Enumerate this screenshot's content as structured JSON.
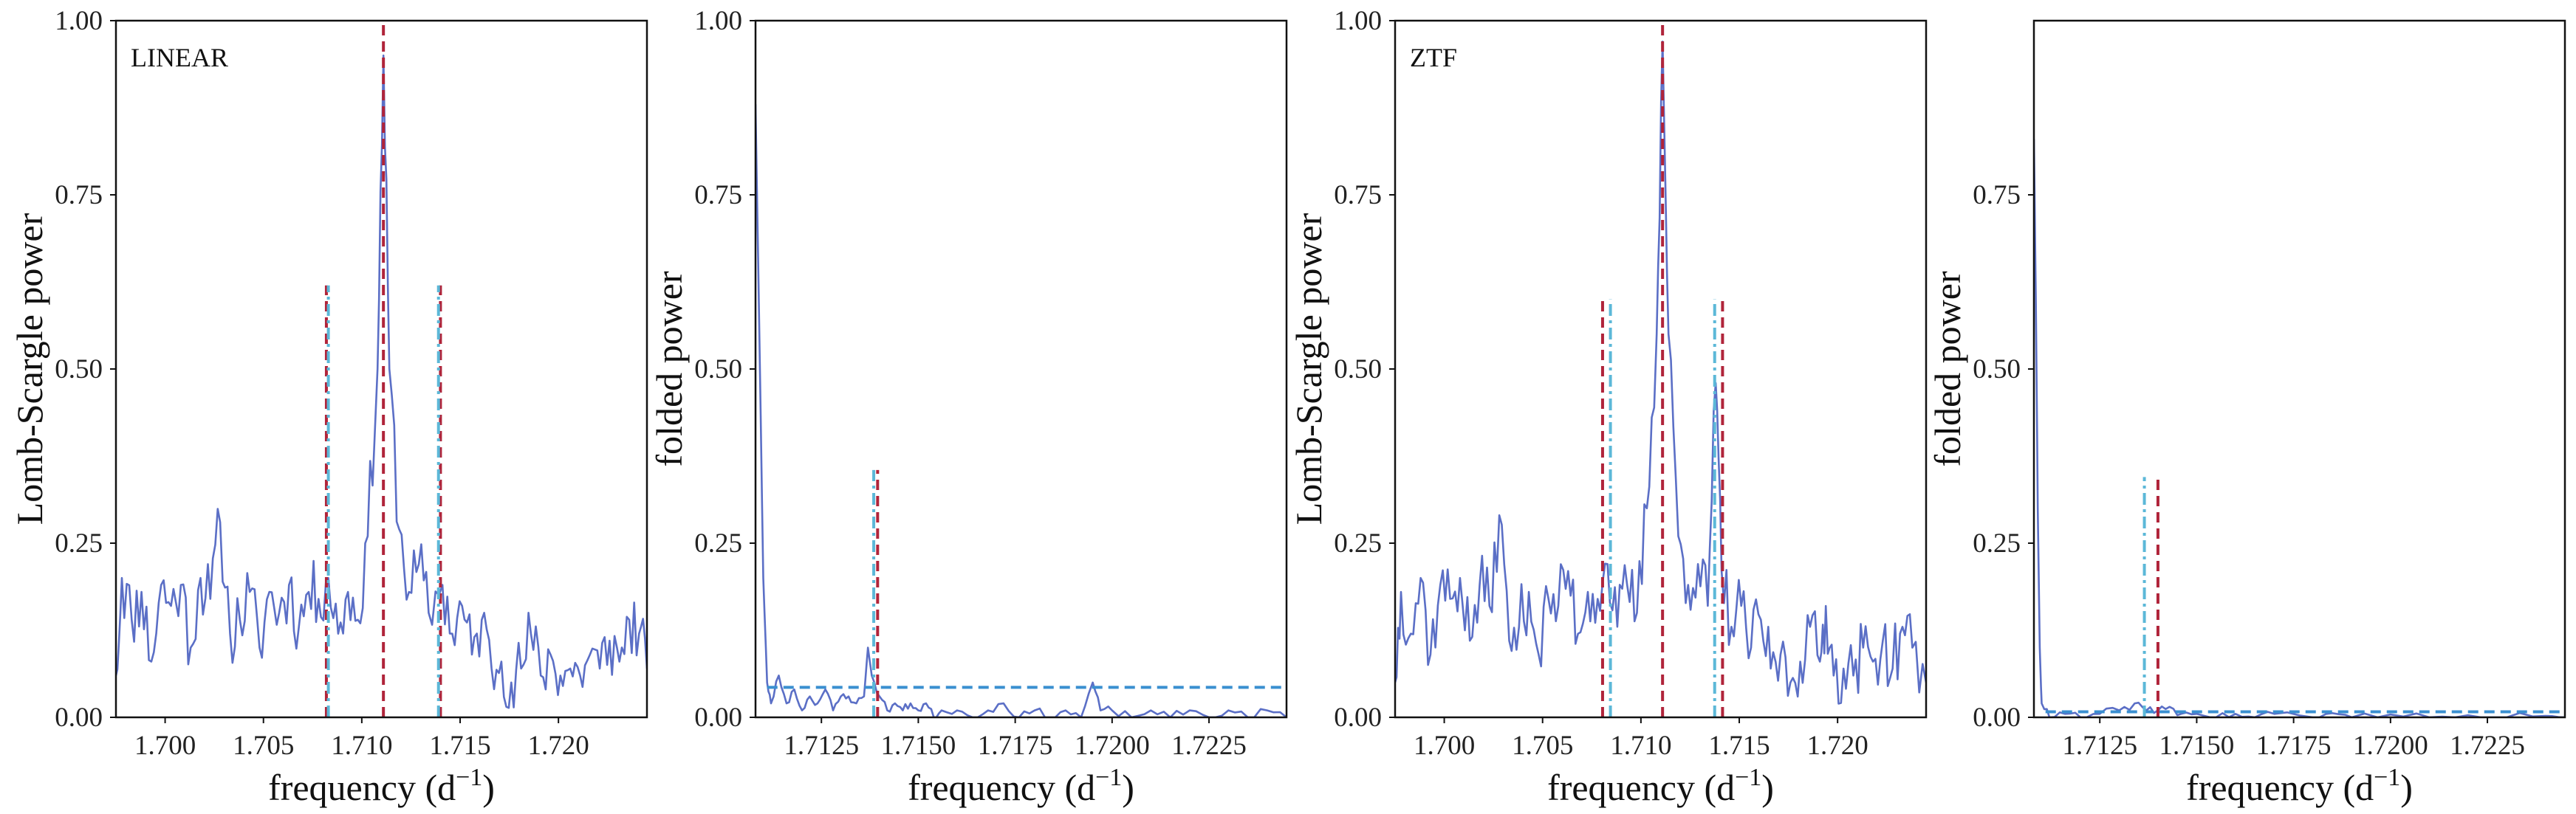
{
  "figure": {
    "colors": {
      "periodogram": "#5b6fc6",
      "red_dashed": "#b0243a",
      "cyan_dashdot": "#5cb8d8",
      "blue_dashed": "#3a8fd0",
      "axes": "#111111"
    }
  },
  "chart_data": [
    {
      "type": "line",
      "panel_label": "LINEAR",
      "xlabel": "frequency (d",
      "xlabel_sup": "−1",
      "xlabel_close": ")",
      "ylabel": "Lomb-Scargle power",
      "xlim": [
        1.6975,
        1.7245
      ],
      "ylim": [
        0,
        1
      ],
      "xticks": [
        1.7,
        1.705,
        1.71,
        1.715,
        1.72
      ],
      "xtick_labels": [
        "1.700",
        "1.705",
        "1.710",
        "1.715",
        "1.720"
      ],
      "yticks": [
        0,
        0.25,
        0.5,
        0.75,
        1.0
      ],
      "ytick_labels": [
        "0.00",
        "0.25",
        "0.50",
        "0.75",
        "1.00"
      ],
      "peak_x": 1.7111,
      "seed": 11,
      "series": [
        {
          "values": [
            [
              1.6975,
              0.06
            ],
            [
              1.6978,
              0.2
            ],
            [
              1.6983,
              0.14
            ],
            [
              1.6988,
              0.18
            ],
            [
              1.6993,
              0.08
            ],
            [
              1.6998,
              0.19
            ],
            [
              1.7003,
              0.16
            ],
            [
              1.7008,
              0.19
            ],
            [
              1.7013,
              0.1
            ],
            [
              1.7018,
              0.2
            ],
            [
              1.7023,
              0.17
            ],
            [
              1.7028,
              0.28
            ],
            [
              1.7033,
              0.12
            ],
            [
              1.7038,
              0.14
            ],
            [
              1.7043,
              0.18
            ],
            [
              1.7048,
              0.1
            ],
            [
              1.7053,
              0.18
            ],
            [
              1.7058,
              0.15
            ],
            [
              1.7063,
              0.19
            ],
            [
              1.7068,
              0.13
            ],
            [
              1.7073,
              0.18
            ],
            [
              1.7078,
              0.17
            ],
            [
              1.7083,
              0.2
            ],
            [
              1.7088,
              0.12
            ],
            [
              1.7093,
              0.18
            ],
            [
              1.7098,
              0.14
            ],
            [
              1.7103,
              0.26
            ],
            [
              1.7108,
              0.5
            ],
            [
              1.7111,
              0.95
            ],
            [
              1.7114,
              0.5
            ],
            [
              1.7119,
              0.27
            ],
            [
              1.7124,
              0.18
            ],
            [
              1.7129,
              0.22
            ],
            [
              1.7134,
              0.15
            ],
            [
              1.7141,
              0.19
            ],
            [
              1.7146,
              0.12
            ],
            [
              1.7151,
              0.16
            ],
            [
              1.7156,
              0.09
            ],
            [
              1.7161,
              0.14
            ],
            [
              1.7166,
              0.07
            ],
            [
              1.7171,
              0.08
            ],
            [
              1.7176,
              0.05
            ],
            [
              1.7181,
              0.07
            ],
            [
              1.7186,
              0.12
            ],
            [
              1.7191,
              0.06
            ],
            [
              1.7196,
              0.09
            ],
            [
              1.7201,
              0.06
            ],
            [
              1.7206,
              0.07
            ],
            [
              1.7211,
              0.06
            ],
            [
              1.7216,
              0.09
            ],
            [
              1.7221,
              0.07
            ],
            [
              1.7226,
              0.11
            ],
            [
              1.7231,
              0.08
            ],
            [
              1.7236,
              0.14
            ],
            [
              1.7241,
              0.12
            ],
            [
              1.7245,
              0.07
            ]
          ]
        }
      ],
      "vlines": [
        {
          "x": 1.7111,
          "ymax": 1.0,
          "style": "red_dashed"
        },
        {
          "x": 1.7082,
          "ymax": 0.62,
          "style": "red_dashed"
        },
        {
          "x": 1.7083,
          "ymax": 0.62,
          "style": "cyan_dashdot"
        },
        {
          "x": 1.714,
          "ymax": 0.62,
          "style": "red_dashed"
        },
        {
          "x": 1.7139,
          "ymax": 0.62,
          "style": "cyan_dashdot"
        }
      ],
      "hlines": []
    },
    {
      "type": "line",
      "xlabel": "frequency (d",
      "xlabel_sup": "−1",
      "xlabel_close": ")",
      "ylabel": "folded power",
      "xlim": [
        1.7108,
        1.7245
      ],
      "ylim": [
        0,
        1
      ],
      "xticks": [
        1.7125,
        1.715,
        1.7175,
        1.72,
        1.7225
      ],
      "xtick_labels": [
        "1.7125",
        "1.7150",
        "1.7175",
        "1.7200",
        "1.7225"
      ],
      "yticks": [
        0,
        0.25,
        0.5,
        0.75,
        1.0
      ],
      "ytick_labels": [
        "0.00",
        "0.25",
        "0.50",
        "0.75",
        "1.00"
      ],
      "seed": 23,
      "series": [
        {
          "values": [
            [
              1.7108,
              0.88
            ],
            [
              1.7109,
              0.55
            ],
            [
              1.711,
              0.2
            ],
            [
              1.7111,
              0.05
            ],
            [
              1.7112,
              0.02
            ],
            [
              1.7114,
              0.06
            ],
            [
              1.7116,
              0.02
            ],
            [
              1.7118,
              0.04
            ],
            [
              1.712,
              0.01
            ],
            [
              1.7122,
              0.03
            ],
            [
              1.7124,
              0.02
            ],
            [
              1.7126,
              0.04
            ],
            [
              1.7128,
              0.01
            ],
            [
              1.713,
              0.03
            ],
            [
              1.7132,
              0.03
            ],
            [
              1.7134,
              0.02
            ],
            [
              1.7136,
              0.03
            ],
            [
              1.7137,
              0.1
            ],
            [
              1.7138,
              0.06
            ],
            [
              1.714,
              0.03
            ],
            [
              1.7142,
              0.01
            ],
            [
              1.7144,
              0.02
            ],
            [
              1.7146,
              0.01
            ],
            [
              1.7148,
              0.02
            ],
            [
              1.715,
              0.01
            ],
            [
              1.7152,
              0.02
            ],
            [
              1.7154,
              0.0
            ],
            [
              1.7156,
              0.01
            ],
            [
              1.716,
              0.01
            ],
            [
              1.7164,
              0.0
            ],
            [
              1.7168,
              0.01
            ],
            [
              1.7172,
              0.02
            ],
            [
              1.7176,
              0.0
            ],
            [
              1.718,
              0.01
            ],
            [
              1.7184,
              0.0
            ],
            [
              1.7188,
              0.01
            ],
            [
              1.7192,
              0.0
            ],
            [
              1.7195,
              0.05
            ],
            [
              1.7197,
              0.01
            ],
            [
              1.72,
              0.01
            ],
            [
              1.7205,
              0.0
            ],
            [
              1.721,
              0.01
            ],
            [
              1.7215,
              0.0
            ],
            [
              1.722,
              0.01
            ],
            [
              1.7225,
              0.0
            ],
            [
              1.723,
              0.01
            ],
            [
              1.7235,
              0.0
            ],
            [
              1.724,
              0.01
            ],
            [
              1.7245,
              0.0
            ]
          ]
        }
      ],
      "vlines": [
        {
          "x": 1.71385,
          "ymax": 0.355,
          "style": "cyan_dashdot"
        },
        {
          "x": 1.71395,
          "ymax": 0.355,
          "style": "red_dashed"
        }
      ],
      "hlines": [
        {
          "y": 0.043,
          "xmin": 1.7111,
          "xmax": 1.7245,
          "style": "blue_dashed"
        }
      ]
    },
    {
      "type": "line",
      "panel_label": "ZTF",
      "xlabel": "frequency (d",
      "xlabel_sup": "−1",
      "xlabel_close": ")",
      "ylabel": "Lomb-Scargle power",
      "xlim": [
        1.6975,
        1.7245
      ],
      "ylim": [
        0,
        1
      ],
      "xticks": [
        1.7,
        1.705,
        1.71,
        1.715,
        1.72
      ],
      "xtick_labels": [
        "1.700",
        "1.705",
        "1.710",
        "1.715",
        "1.720"
      ],
      "yticks": [
        0,
        0.25,
        0.5,
        0.75,
        1.0
      ],
      "ytick_labels": [
        "0.00",
        "0.25",
        "0.50",
        "0.75",
        "1.00"
      ],
      "peak_x": 1.7111,
      "seed": 37,
      "series": [
        {
          "values": [
            [
              1.6975,
              0.05
            ],
            [
              1.6978,
              0.18
            ],
            [
              1.6983,
              0.12
            ],
            [
              1.6988,
              0.2
            ],
            [
              1.6993,
              0.09
            ],
            [
              1.6998,
              0.19
            ],
            [
              1.7003,
              0.17
            ],
            [
              1.7008,
              0.2
            ],
            [
              1.7013,
              0.11
            ],
            [
              1.7018,
              0.19
            ],
            [
              1.7023,
              0.16
            ],
            [
              1.7028,
              0.29
            ],
            [
              1.7033,
              0.11
            ],
            [
              1.7038,
              0.13
            ],
            [
              1.7043,
              0.18
            ],
            [
              1.7048,
              0.09
            ],
            [
              1.7053,
              0.17
            ],
            [
              1.7058,
              0.16
            ],
            [
              1.7063,
              0.21
            ],
            [
              1.7068,
              0.12
            ],
            [
              1.7073,
              0.18
            ],
            [
              1.7078,
              0.17
            ],
            [
              1.7083,
              0.22
            ],
            [
              1.7088,
              0.13
            ],
            [
              1.7093,
              0.19
            ],
            [
              1.7098,
              0.15
            ],
            [
              1.7103,
              0.3
            ],
            [
              1.7108,
              0.55
            ],
            [
              1.7111,
              0.97
            ],
            [
              1.7114,
              0.55
            ],
            [
              1.7119,
              0.26
            ],
            [
              1.7124,
              0.19
            ],
            [
              1.7129,
              0.22
            ],
            [
              1.7134,
              0.16
            ],
            [
              1.7138,
              0.48
            ],
            [
              1.7141,
              0.21
            ],
            [
              1.7146,
              0.13
            ],
            [
              1.7151,
              0.16
            ],
            [
              1.7156,
              0.1
            ],
            [
              1.7161,
              0.14
            ],
            [
              1.7166,
              0.07
            ],
            [
              1.7171,
              0.09
            ],
            [
              1.7176,
              0.05
            ],
            [
              1.7181,
              0.08
            ],
            [
              1.7186,
              0.13
            ],
            [
              1.7191,
              0.08
            ],
            [
              1.7194,
              0.16
            ],
            [
              1.7198,
              0.06
            ],
            [
              1.7203,
              0.07
            ],
            [
              1.7208,
              0.06
            ],
            [
              1.7213,
              0.1
            ],
            [
              1.7218,
              0.08
            ],
            [
              1.7223,
              0.11
            ],
            [
              1.7228,
              0.07
            ],
            [
              1.7233,
              0.13
            ],
            [
              1.7238,
              0.1
            ],
            [
              1.7245,
              0.05
            ]
          ]
        }
      ],
      "vlines": [
        {
          "x": 1.7111,
          "ymax": 1.0,
          "style": "red_dashed"
        },
        {
          "x": 1.70805,
          "ymax": 0.6,
          "style": "red_dashed"
        },
        {
          "x": 1.70845,
          "ymax": 0.6,
          "style": "cyan_dashdot"
        },
        {
          "x": 1.71415,
          "ymax": 0.6,
          "style": "red_dashed"
        },
        {
          "x": 1.71375,
          "ymax": 0.6,
          "style": "cyan_dashdot"
        }
      ],
      "hlines": []
    },
    {
      "type": "line",
      "xlabel": "frequency (d",
      "xlabel_sup": "−1",
      "xlabel_close": ")",
      "ylabel": "folded power",
      "xlim": [
        1.7108,
        1.7245
      ],
      "ylim": [
        0,
        1
      ],
      "xticks": [
        1.7125,
        1.715,
        1.7175,
        1.72,
        1.7225
      ],
      "xtick_labels": [
        "1.7125",
        "1.7150",
        "1.7175",
        "1.7200",
        "1.7225"
      ],
      "yticks": [
        0,
        0.25,
        0.5,
        0.75
      ],
      "ytick_labels": [
        "0.00",
        "0.25",
        "0.50",
        "0.75"
      ],
      "seed": 41,
      "series": [
        {
          "values": [
            [
              1.7108,
              0.83
            ],
            [
              1.71085,
              0.6
            ],
            [
              1.7109,
              0.3
            ],
            [
              1.71095,
              0.1
            ],
            [
              1.711,
              0.02
            ],
            [
              1.7112,
              0.0
            ],
            [
              1.7116,
              0.005
            ],
            [
              1.712,
              0.0
            ],
            [
              1.7125,
              0.005
            ],
            [
              1.713,
              0.01
            ],
            [
              1.7134,
              0.02
            ],
            [
              1.7137,
              0.01
            ],
            [
              1.714,
              0.01
            ],
            [
              1.7143,
              0.015
            ],
            [
              1.7146,
              0.005
            ],
            [
              1.715,
              0.005
            ],
            [
              1.7155,
              0.0
            ],
            [
              1.716,
              0.005
            ],
            [
              1.7165,
              0.0
            ],
            [
              1.717,
              0.005
            ],
            [
              1.718,
              0.0
            ],
            [
              1.7185,
              0.006
            ],
            [
              1.719,
              0.0
            ],
            [
              1.72,
              0.004
            ],
            [
              1.721,
              0.0
            ],
            [
              1.722,
              0.003
            ],
            [
              1.723,
              0.0
            ],
            [
              1.724,
              0.002
            ],
            [
              1.7245,
              0.0
            ]
          ]
        }
      ],
      "vlines": [
        {
          "x": 1.71365,
          "ymax": 0.345,
          "style": "cyan_dashdot"
        },
        {
          "x": 1.714,
          "ymax": 0.345,
          "style": "red_dashed"
        }
      ],
      "hlines": [
        {
          "y": 0.008,
          "xmin": 1.7111,
          "xmax": 1.7245,
          "style": "blue_dashed"
        }
      ]
    }
  ]
}
